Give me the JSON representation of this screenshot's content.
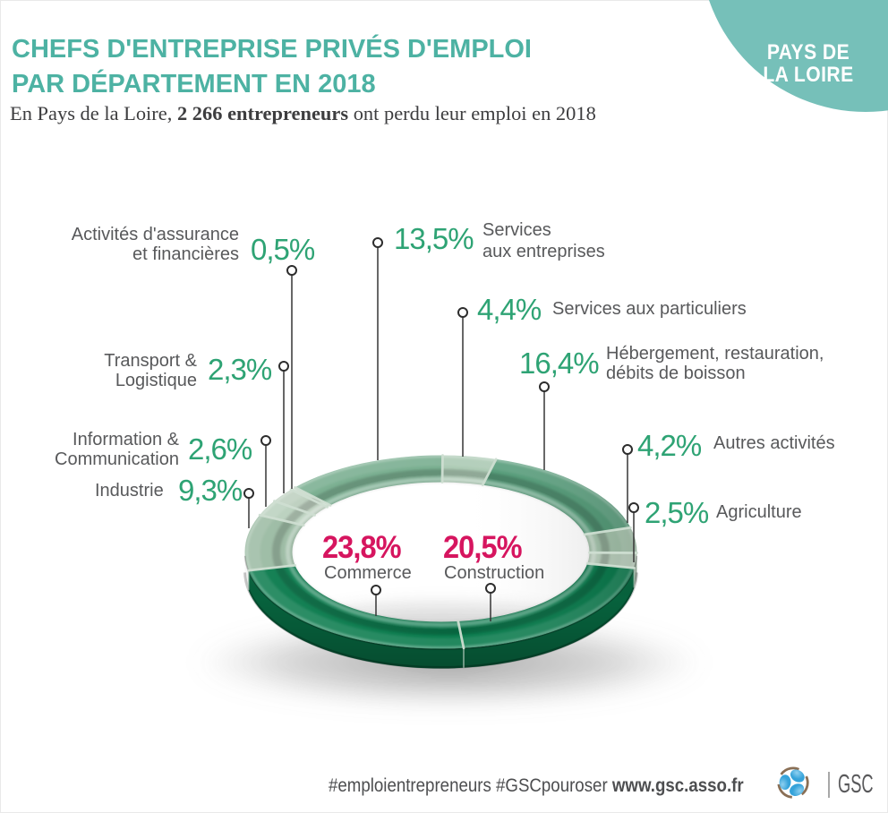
{
  "header": {
    "title_line1": "CHEFS D'ENTREPRISE PRIVÉS D'EMPLOI",
    "title_line2": "PAR DÉPARTEMENT EN 2018",
    "subtitle_prefix": "En Pays de la Loire, ",
    "subtitle_bold": "2 266 entrepreneurs",
    "subtitle_suffix": " ont perdu leur emploi en 2018",
    "badge_line1": "PAYS DE",
    "badge_line2": "LA LOIRE"
  },
  "footer": {
    "hashtags": "#emploientrepreneurs #GSCpouroser ",
    "url": "www.gsc.asso.fr",
    "brand": "GSC"
  },
  "colors": {
    "title_teal": "#4db2a3",
    "badge_teal": "#76c0b9",
    "percent_green": "#2ea374",
    "highlight_magenta": "#d6155f",
    "text_gray": "#58595b"
  },
  "chart_data": {
    "type": "pie",
    "unit": "%",
    "title": "Chefs d'entreprise privés d'emploi par département en 2018 — Pays de la Loire",
    "total": "2 266 entrepreneurs",
    "start_angle_deg": 169,
    "direction": "counterclockwise",
    "segments": [
      {
        "label": "Commerce",
        "value": 23.8,
        "display": "23,8%",
        "color": "#097a4c",
        "emphasis": true
      },
      {
        "label": "Construction",
        "value": 20.5,
        "display": "20,5%",
        "color": "#097a4c",
        "emphasis": true
      },
      {
        "label": "Agriculture",
        "value": 2.5,
        "display": "2,5%",
        "color": "#bcd2bf",
        "emphasis": false
      },
      {
        "label": "Autres activités",
        "value": 4.2,
        "display": "4,2%",
        "color": "#a5c4ac",
        "emphasis": false
      },
      {
        "label": "Hébergement, restauration,\ndébits de boisson",
        "value": 16.4,
        "display": "16,4%",
        "color": "#549b78",
        "emphasis": false
      },
      {
        "label": "Services aux particuliers",
        "value": 4.4,
        "display": "4,4%",
        "color": "#accab4",
        "emphasis": false
      },
      {
        "label": "Services\naux entreprises",
        "value": 13.5,
        "display": "13,5%",
        "color": "#77ad8e",
        "emphasis": false
      },
      {
        "label": "Activités d'assurance\net financières",
        "value": 0.5,
        "display": "0,5%",
        "color": "#c8d9ca",
        "emphasis": false
      },
      {
        "label": "Transport &\nLogistique",
        "value": 2.3,
        "display": "2,3%",
        "color": "#bccfbe",
        "emphasis": false
      },
      {
        "label": "Information &\nCommunication",
        "value": 2.6,
        "display": "2,6%",
        "color": "#b9d0bd",
        "emphasis": false
      },
      {
        "label": "Industrie",
        "value": 9.3,
        "display": "9,3%",
        "color": "#9abaa2",
        "emphasis": false
      }
    ]
  }
}
